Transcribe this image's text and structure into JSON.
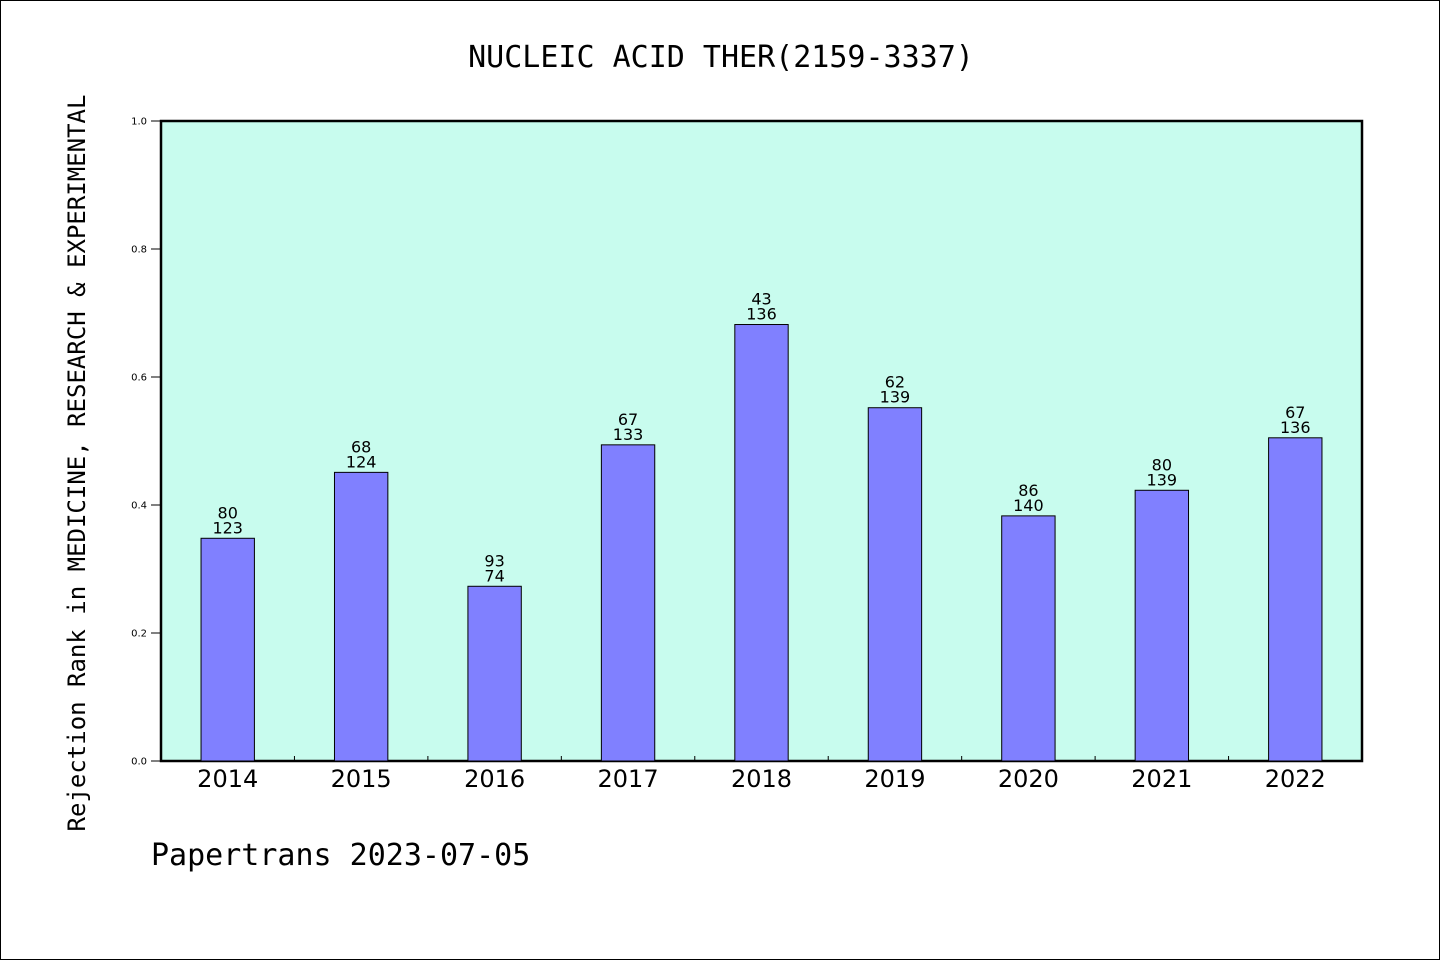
{
  "chart_data": {
    "type": "bar",
    "title": "NUCLEIC ACID THER(2159-3337)",
    "xlabel": "",
    "ylabel": "Rejection Rank in MEDICINE, RESEARCH & EXPERIMENTAL",
    "ylim": [
      0,
      1.0
    ],
    "yticks": [
      "0.0",
      "0.2",
      "0.4",
      "0.6",
      "0.8",
      "1.0"
    ],
    "grid": false,
    "categories": [
      "2014",
      "2015",
      "2016",
      "2017",
      "2018",
      "2019",
      "2020",
      "2021",
      "2022"
    ],
    "values": [
      0.348,
      0.451,
      0.273,
      0.494,
      0.682,
      0.552,
      0.383,
      0.423,
      0.505
    ],
    "labels_top": [
      "80",
      "68",
      "93",
      "67",
      "43",
      "62",
      "86",
      "80",
      "67"
    ],
    "labels_bottom": [
      "123",
      "124",
      "74",
      "133",
      "136",
      "139",
      "140",
      "139",
      "136"
    ],
    "colors": {
      "plot_bg": "#c8fcee",
      "bar": "#8080ff"
    }
  },
  "footer": "Papertrans 2023-07-05"
}
